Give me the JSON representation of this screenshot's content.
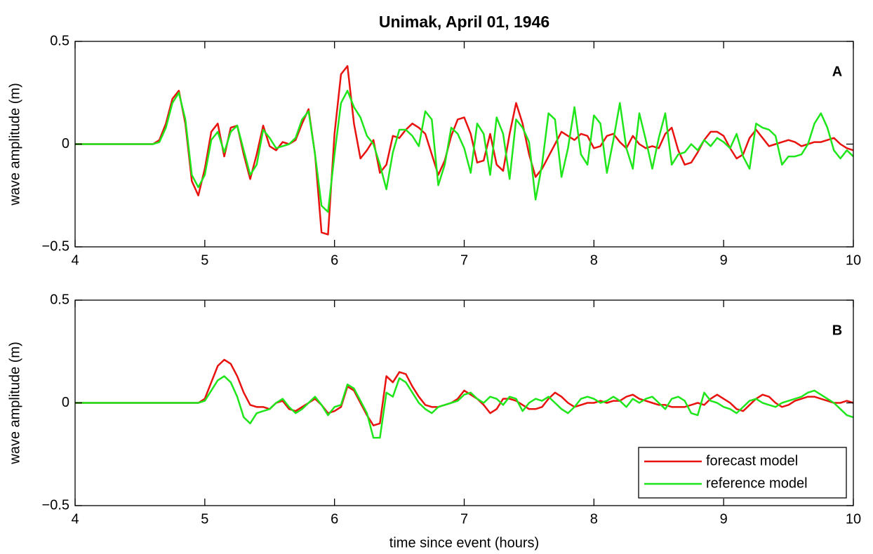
{
  "chart_data": [
    {
      "type": "line",
      "title": "Unimak, April 01, 1946",
      "ylabel": "wave amplitude (m)",
      "annotation": "A",
      "x": [
        4,
        4.05,
        4.1,
        4.15,
        4.2,
        4.25,
        4.3,
        4.35,
        4.4,
        4.45,
        4.5,
        4.55,
        4.6,
        4.65,
        4.7,
        4.75,
        4.8,
        4.85,
        4.9,
        4.95,
        5,
        5.05,
        5.1,
        5.15,
        5.2,
        5.25,
        5.3,
        5.35,
        5.4,
        5.45,
        5.5,
        5.55,
        5.6,
        5.65,
        5.7,
        5.75,
        5.8,
        5.85,
        5.9,
        5.95,
        6,
        6.05,
        6.1,
        6.15,
        6.2,
        6.25,
        6.3,
        6.35,
        6.4,
        6.45,
        6.5,
        6.55,
        6.6,
        6.65,
        6.7,
        6.75,
        6.8,
        6.85,
        6.9,
        6.95,
        7,
        7.05,
        7.1,
        7.15,
        7.2,
        7.25,
        7.3,
        7.35,
        7.4,
        7.45,
        7.5,
        7.55,
        7.6,
        7.65,
        7.7,
        7.75,
        7.8,
        7.85,
        7.9,
        7.95,
        8,
        8.05,
        8.1,
        8.15,
        8.2,
        8.25,
        8.3,
        8.35,
        8.4,
        8.45,
        8.5,
        8.55,
        8.6,
        8.65,
        8.7,
        8.75,
        8.8,
        8.85,
        8.9,
        8.95,
        9,
        9.05,
        9.1,
        9.15,
        9.2,
        9.25,
        9.3,
        9.35,
        9.4,
        9.45,
        9.5,
        9.55,
        9.6,
        9.65,
        9.7,
        9.75,
        9.8,
        9.85,
        9.9,
        9.95,
        10
      ],
      "series": [
        {
          "color": "#e8120f",
          "values": [
            0,
            0,
            0,
            0,
            0,
            0,
            0,
            0,
            0,
            0,
            0,
            0,
            0,
            0.02,
            0.1,
            0.22,
            0.26,
            0.1,
            -0.18,
            -0.25,
            -0.12,
            0.06,
            0.1,
            -0.06,
            0.08,
            0.09,
            -0.05,
            -0.17,
            -0.05,
            0.09,
            -0.01,
            -0.03,
            0.01,
            0,
            0.02,
            0.1,
            0.17,
            -0.05,
            -0.43,
            -0.44,
            0.05,
            0.34,
            0.38,
            0.1,
            -0.07,
            -0.03,
            0.02,
            -0.14,
            -0.1,
            0.04,
            0.03,
            0.07,
            0.1,
            0.08,
            0.05,
            -0.05,
            -0.15,
            -0.08,
            0.04,
            0.12,
            0.13,
            0.05,
            -0.09,
            -0.08,
            0.05,
            -0.1,
            -0.13,
            0.05,
            0.2,
            0.1,
            -0.05,
            -0.16,
            -0.12,
            -0.06,
            0,
            0.06,
            0.04,
            0.02,
            0.05,
            0.04,
            -0.02,
            -0.01,
            0.04,
            0.05,
            0.01,
            -0.02,
            0.04,
            0,
            -0.02,
            -0.01,
            -0.02,
            0.05,
            0.08,
            -0.03,
            -0.1,
            -0.09,
            -0.04,
            0.02,
            0.06,
            0.06,
            0.04,
            -0.02,
            -0.07,
            -0.05,
            0.03,
            0.07,
            0.03,
            -0.01,
            0,
            0.01,
            0.02,
            0.01,
            -0.01,
            0,
            0.01,
            0.01,
            0.02,
            0.03,
            0,
            -0.02,
            -0.03
          ]
        },
        {
          "color": "#1ee61b",
          "values": [
            0,
            0,
            0,
            0,
            0,
            0,
            0,
            0,
            0,
            0,
            0,
            0,
            0,
            0.01,
            0.08,
            0.2,
            0.25,
            0.12,
            -0.15,
            -0.21,
            -0.15,
            0.02,
            0.06,
            -0.04,
            0.06,
            0.09,
            -0.03,
            -0.15,
            -0.1,
            0.07,
            0.03,
            -0.02,
            -0.01,
            0,
            0.03,
            0.12,
            0.16,
            -0.05,
            -0.3,
            -0.33,
            -0.05,
            0.2,
            0.26,
            0.18,
            0.13,
            0.04,
            0,
            -0.1,
            -0.22,
            -0.04,
            0.07,
            0.07,
            0.04,
            -0.01,
            0.16,
            0.12,
            -0.2,
            -0.1,
            0.08,
            0.05,
            -0.02,
            -0.14,
            0.1,
            0.05,
            -0.15,
            0.13,
            0.05,
            -0.17,
            0.12,
            0.08,
            0.01,
            -0.27,
            -0.1,
            0.15,
            0.12,
            -0.16,
            -0.02,
            0.18,
            -0.05,
            -0.1,
            0.14,
            0.1,
            -0.14,
            0.02,
            0.2,
            -0.02,
            -0.12,
            0.15,
            0.02,
            -0.12,
            0.03,
            0.15,
            -0.1,
            -0.05,
            -0.04,
            0,
            -0.03,
            0.02,
            -0.01,
            0.03,
            0.01,
            -0.02,
            0.05,
            -0.06,
            -0.12,
            0.1,
            0.08,
            0.07,
            0.04,
            -0.1,
            -0.06,
            -0.06,
            -0.05,
            0,
            0.1,
            0.15,
            0.08,
            -0.03,
            -0.07,
            -0.03,
            -0.06
          ]
        }
      ],
      "xlim": [
        4,
        10
      ],
      "xticks": [
        4,
        5,
        6,
        7,
        8,
        9,
        10
      ],
      "ylim": [
        -0.5,
        0.5
      ],
      "yticks": [
        {
          "value": -0.5,
          "label": "−0.5"
        },
        0,
        0.5
      ]
    },
    {
      "type": "line",
      "ylabel": "wave amplitude (m)",
      "xlabel": "time since event (hours)",
      "annotation": "B",
      "legend": "lower right",
      "x": [
        4,
        4.05,
        4.1,
        4.15,
        4.2,
        4.25,
        4.3,
        4.35,
        4.4,
        4.45,
        4.5,
        4.55,
        4.6,
        4.65,
        4.7,
        4.75,
        4.8,
        4.85,
        4.9,
        4.95,
        5,
        5.05,
        5.1,
        5.15,
        5.2,
        5.25,
        5.3,
        5.35,
        5.4,
        5.45,
        5.5,
        5.55,
        5.6,
        5.65,
        5.7,
        5.75,
        5.8,
        5.85,
        5.9,
        5.95,
        6,
        6.05,
        6.1,
        6.15,
        6.2,
        6.25,
        6.3,
        6.35,
        6.4,
        6.45,
        6.5,
        6.55,
        6.6,
        6.65,
        6.7,
        6.75,
        6.8,
        6.85,
        6.9,
        6.95,
        7,
        7.05,
        7.1,
        7.15,
        7.2,
        7.25,
        7.3,
        7.35,
        7.4,
        7.45,
        7.5,
        7.55,
        7.6,
        7.65,
        7.7,
        7.75,
        7.8,
        7.85,
        7.9,
        7.95,
        8,
        8.05,
        8.1,
        8.15,
        8.2,
        8.25,
        8.3,
        8.35,
        8.4,
        8.45,
        8.5,
        8.55,
        8.6,
        8.65,
        8.7,
        8.75,
        8.8,
        8.85,
        8.9,
        8.95,
        9,
        9.05,
        9.1,
        9.15,
        9.2,
        9.25,
        9.3,
        9.35,
        9.4,
        9.45,
        9.5,
        9.55,
        9.6,
        9.65,
        9.7,
        9.75,
        9.8,
        9.85,
        9.9,
        9.95,
        10
      ],
      "series": [
        {
          "name": "forecast model",
          "color": "#e8120f",
          "values": [
            0,
            0,
            0,
            0,
            0,
            0,
            0,
            0,
            0,
            0,
            0,
            0,
            0,
            0,
            0,
            0,
            0,
            0,
            0,
            0,
            0.02,
            0.1,
            0.18,
            0.21,
            0.19,
            0.13,
            0.05,
            -0.01,
            -0.02,
            -0.02,
            -0.03,
            0,
            0.01,
            -0.03,
            -0.04,
            -0.02,
            0,
            0.02,
            -0.01,
            -0.05,
            -0.04,
            -0.02,
            0.08,
            0.06,
            0,
            -0.06,
            -0.11,
            -0.1,
            0.13,
            0.1,
            0.15,
            0.14,
            0.08,
            0.03,
            -0.01,
            -0.02,
            -0.02,
            -0.01,
            0,
            0.02,
            0.06,
            0.04,
            0.02,
            -0.01,
            -0.05,
            -0.03,
            0.02,
            0.02,
            0.01,
            -0.01,
            -0.03,
            -0.03,
            -0.02,
            0.02,
            0.05,
            0.03,
            0,
            -0.02,
            -0.01,
            0,
            0,
            0.01,
            0,
            0.01,
            0.01,
            0.03,
            0.04,
            0.02,
            0.01,
            0,
            -0.01,
            -0.01,
            -0.02,
            -0.02,
            -0.02,
            -0.01,
            0,
            -0.01,
            0.02,
            0.04,
            0.02,
            0,
            -0.03,
            -0.04,
            -0.01,
            0.02,
            0.04,
            0.03,
            0,
            -0.02,
            -0.01,
            0.01,
            0.02,
            0.03,
            0.03,
            0.02,
            0.01,
            0,
            0,
            0.01,
            0
          ]
        },
        {
          "name": "reference model",
          "color": "#1ee61b",
          "values": [
            0,
            0,
            0,
            0,
            0,
            0,
            0,
            0,
            0,
            0,
            0,
            0,
            0,
            0,
            0,
            0,
            0,
            0,
            0,
            0,
            0.01,
            0.06,
            0.11,
            0.13,
            0.1,
            0.03,
            -0.07,
            -0.1,
            -0.05,
            -0.04,
            -0.03,
            0,
            0.02,
            -0.02,
            -0.05,
            -0.03,
            0,
            0.03,
            -0.01,
            -0.06,
            -0.02,
            -0.01,
            0.09,
            0.07,
            0.01,
            -0.05,
            -0.17,
            -0.17,
            0.05,
            0.03,
            0.12,
            0.1,
            0.05,
            0,
            -0.03,
            -0.05,
            -0.02,
            -0.01,
            0,
            0.01,
            0.04,
            0.05,
            0.02,
            0,
            0.03,
            0.02,
            -0.01,
            0.03,
            0.02,
            -0.04,
            0,
            0.02,
            0.01,
            0.03,
            0,
            -0.03,
            -0.05,
            -0.02,
            0.02,
            0.03,
            0.02,
            0,
            0.01,
            0.03,
            0.01,
            -0.02,
            0.02,
            0,
            0.02,
            0.03,
            0,
            -0.03,
            0.02,
            0.03,
            0.01,
            -0.05,
            -0.06,
            0.05,
            0.01,
            0,
            -0.02,
            -0.03,
            -0.05,
            -0.02,
            0.01,
            0.02,
            0,
            -0.01,
            -0.02,
            0,
            0.01,
            0.02,
            0.03,
            0.05,
            0.06,
            0.04,
            0.02,
            0,
            -0.03,
            -0.06,
            -0.07
          ]
        }
      ],
      "xlim": [
        4,
        10
      ],
      "xticks": [
        4,
        5,
        6,
        7,
        8,
        9,
        10
      ],
      "ylim": [
        -0.5,
        0.5
      ],
      "yticks": [
        {
          "value": -0.5,
          "label": "−0.5"
        },
        0,
        0.5
      ]
    }
  ]
}
